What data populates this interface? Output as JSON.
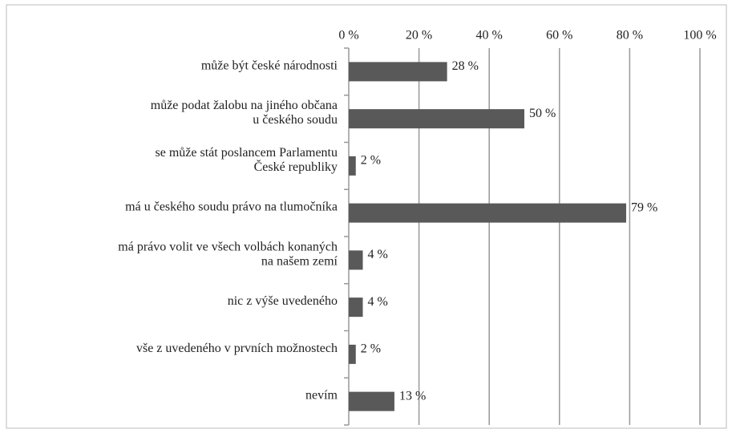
{
  "chart_data": {
    "type": "bar",
    "orientation": "horizontal",
    "categories": [
      "může být české národnosti",
      "může podat žalobu na jiného občana\nu českého soudu",
      "se může stát poslancem Parlamentu\nČeské republiky",
      "má u českého soudu právo na tlumočníka",
      "má právo volit ve všech volbách konaných\nna našem zemí",
      "nic z výše uvedeného",
      "vše z uvedeného v prvních možnostech",
      "nevím"
    ],
    "values": [
      28,
      50,
      2,
      79,
      4,
      4,
      2,
      13
    ],
    "value_labels": [
      "28 %",
      "50 %",
      "2 %",
      "79 %",
      "4 %",
      "4 %",
      "2 %",
      "13 %"
    ],
    "color": "#595959",
    "xlim": [
      0,
      100
    ],
    "xticks": [
      {
        "value": 0,
        "label": "0 %"
      },
      {
        "value": 20,
        "label": "20 %"
      },
      {
        "value": 40,
        "label": "40 %"
      },
      {
        "value": 60,
        "label": "60 %"
      },
      {
        "value": 80,
        "label": "80 %"
      },
      {
        "value": 100,
        "label": "100 %"
      }
    ],
    "grid": true
  }
}
